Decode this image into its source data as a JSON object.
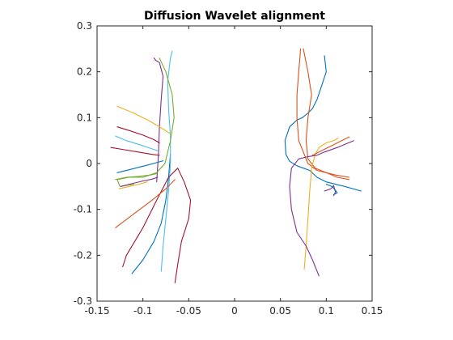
{
  "chart_data": {
    "type": "line",
    "title": "Diffusion Wavelet alignment",
    "xlabel": "",
    "ylabel": "",
    "xlim": [
      -0.15,
      0.15
    ],
    "ylim": [
      -0.3,
      0.3
    ],
    "xticks": [
      -0.15,
      -0.1,
      -0.05,
      0,
      0.05,
      0.1,
      0.15
    ],
    "xtick_labels": [
      "-0.15",
      "-0.1",
      "-0.05",
      "0",
      "0.05",
      "0.1",
      "0.15"
    ],
    "yticks": [
      -0.3,
      -0.2,
      -0.1,
      0,
      0.1,
      0.2,
      0.3
    ],
    "ytick_labels": [
      "-0.3",
      "-0.2",
      "-0.1",
      "0",
      "0.1",
      "0.2",
      "0.3"
    ],
    "grid": false,
    "legend": "none",
    "colors": {
      "blue": "#0072BD",
      "orange": "#D95319",
      "yellow": "#EDB120",
      "purple": "#7E2F8E",
      "green": "#77AC30",
      "cyan": "#4DBEEE",
      "darkred": "#A2142F"
    },
    "series": [
      {
        "color": "#0072BD",
        "x": [
          -0.112,
          -0.1,
          -0.088,
          -0.08,
          -0.075,
          -0.072,
          -0.07
        ],
        "y": [
          -0.24,
          -0.21,
          -0.17,
          -0.13,
          -0.08,
          -0.03,
          0.02
        ]
      },
      {
        "color": "#4DBEEE",
        "x": [
          -0.08,
          -0.078,
          -0.075,
          -0.072,
          -0.07,
          -0.07,
          -0.072,
          -0.073,
          -0.07,
          -0.068
        ],
        "y": [
          -0.235,
          -0.18,
          -0.12,
          -0.06,
          0.0,
          0.06,
          0.12,
          0.18,
          0.23,
          0.245
        ]
      },
      {
        "color": "#A2142F",
        "x": [
          -0.065,
          -0.062,
          -0.058,
          -0.05,
          -0.048,
          -0.055,
          -0.062,
          -0.072,
          -0.085,
          -0.1,
          -0.118,
          -0.122
        ],
        "y": [
          -0.26,
          -0.22,
          -0.17,
          -0.12,
          -0.08,
          -0.04,
          -0.01,
          -0.03,
          -0.08,
          -0.14,
          -0.2,
          -0.225
        ]
      },
      {
        "color": "#D95319",
        "x": [
          -0.13,
          -0.11,
          -0.09,
          -0.075,
          -0.065
        ],
        "y": [
          -0.14,
          -0.11,
          -0.08,
          -0.055,
          -0.035
        ]
      },
      {
        "color": "#7E2F8E",
        "x": [
          -0.085,
          -0.083,
          -0.082,
          -0.08,
          -0.078,
          -0.082,
          -0.086,
          -0.088
        ],
        "y": [
          -0.04,
          0.02,
          0.08,
          0.14,
          0.19,
          0.22,
          0.225,
          0.23
        ]
      },
      {
        "color": "#77AC30",
        "x": [
          -0.082,
          -0.075,
          -0.068,
          -0.066,
          -0.07,
          -0.076,
          -0.085,
          -0.1,
          -0.115,
          -0.128,
          -0.125,
          -0.11
        ],
        "y": [
          0.23,
          0.2,
          0.15,
          0.1,
          0.05,
          0.0,
          -0.02,
          -0.03,
          -0.03,
          -0.035,
          -0.05,
          -0.045
        ]
      },
      {
        "color": "#EDB120",
        "x": [
          -0.128,
          -0.11,
          -0.092,
          -0.078,
          -0.07
        ],
        "y": [
          0.125,
          0.11,
          0.092,
          0.075,
          0.065
        ]
      },
      {
        "color": "#A2142F",
        "x": [
          -0.128,
          -0.115,
          -0.1,
          -0.088,
          -0.082
        ],
        "y": [
          0.08,
          0.072,
          0.062,
          0.052,
          0.045
        ]
      },
      {
        "color": "#4DBEEE",
        "x": [
          -0.13,
          -0.118,
          -0.102,
          -0.09,
          -0.084
        ],
        "y": [
          0.06,
          0.05,
          0.04,
          0.032,
          0.028
        ]
      },
      {
        "color": "#A2142F",
        "x": [
          -0.135,
          -0.12,
          -0.105,
          -0.09,
          -0.082
        ],
        "y": [
          0.035,
          0.03,
          0.025,
          0.02,
          0.018
        ]
      },
      {
        "color": "#0072BD",
        "x": [
          -0.128,
          -0.112,
          -0.098,
          -0.085,
          -0.078
        ],
        "y": [
          -0.02,
          -0.012,
          -0.005,
          0.002,
          0.006
        ]
      },
      {
        "color": "#77AC30",
        "x": [
          -0.13,
          -0.118,
          -0.105,
          -0.092,
          -0.085
        ],
        "y": [
          -0.035,
          -0.03,
          -0.028,
          -0.025,
          -0.022
        ]
      },
      {
        "color": "#7E2F8E",
        "x": [
          -0.124,
          -0.112,
          -0.1,
          -0.09,
          -0.084
        ],
        "y": [
          -0.05,
          -0.044,
          -0.038,
          -0.034,
          -0.03
        ]
      },
      {
        "color": "#EDB120",
        "x": [
          -0.126,
          -0.115,
          -0.104,
          -0.095
        ],
        "y": [
          -0.055,
          -0.05,
          -0.045,
          -0.04
        ]
      },
      {
        "color": "#0072BD",
        "x": [
          0.098,
          0.1,
          0.095,
          0.09,
          0.085,
          0.08,
          0.074,
          0.068,
          0.06,
          0.055,
          0.056,
          0.06,
          0.068,
          0.075,
          0.082,
          0.09,
          0.1,
          0.12,
          0.138
        ],
        "y": [
          0.235,
          0.2,
          0.17,
          0.14,
          0.12,
          0.11,
          0.1,
          0.095,
          0.08,
          0.05,
          0.02,
          0.005,
          -0.005,
          -0.01,
          -0.015,
          -0.03,
          -0.04,
          -0.05,
          -0.06
        ]
      },
      {
        "color": "#D95319",
        "x": [
          0.072,
          0.07,
          0.068,
          0.068,
          0.07,
          0.08,
          0.09,
          0.1,
          0.11,
          0.125
        ],
        "y": [
          0.25,
          0.2,
          0.15,
          0.1,
          0.05,
          0.0,
          -0.015,
          -0.02,
          -0.025,
          -0.03
        ]
      },
      {
        "color": "#D95319",
        "x": [
          0.075,
          0.08,
          0.084,
          0.08,
          0.078,
          0.08,
          0.088,
          0.1,
          0.112,
          0.125
        ],
        "y": [
          0.25,
          0.2,
          0.15,
          0.1,
          0.05,
          0.01,
          -0.01,
          -0.02,
          -0.03,
          -0.035
        ]
      },
      {
        "color": "#EDB120",
        "x": [
          0.076,
          0.078,
          0.08,
          0.082,
          0.084,
          0.088,
          0.092,
          0.1,
          0.108,
          0.113
        ],
        "y": [
          -0.23,
          -0.18,
          -0.12,
          -0.06,
          -0.01,
          0.02,
          0.035,
          0.045,
          0.05,
          0.055
        ]
      },
      {
        "color": "#7E2F8E",
        "x": [
          0.092,
          0.085,
          0.078,
          0.068,
          0.062,
          0.06,
          0.062,
          0.07,
          0.08,
          0.09,
          0.098,
          0.112,
          0.13
        ],
        "y": [
          -0.245,
          -0.21,
          -0.18,
          -0.15,
          -0.1,
          -0.05,
          -0.01,
          0.01,
          0.015,
          0.018,
          0.025,
          0.035,
          0.05
        ]
      },
      {
        "color": "#D95319",
        "x": [
          0.085,
          0.095,
          0.105,
          0.115,
          0.125
        ],
        "y": [
          0.018,
          0.028,
          0.038,
          0.048,
          0.058
        ]
      },
      {
        "color": "#7E2F8E",
        "x": [
          0.098,
          0.105,
          0.108,
          0.11,
          0.108
        ],
        "y": [
          -0.06,
          -0.055,
          -0.048,
          -0.062,
          -0.07
        ]
      },
      {
        "color": "#0072BD",
        "x": [
          0.1,
          0.106,
          0.11,
          0.112,
          0.108
        ],
        "y": [
          -0.045,
          -0.05,
          -0.058,
          -0.064,
          -0.068
        ]
      }
    ]
  }
}
